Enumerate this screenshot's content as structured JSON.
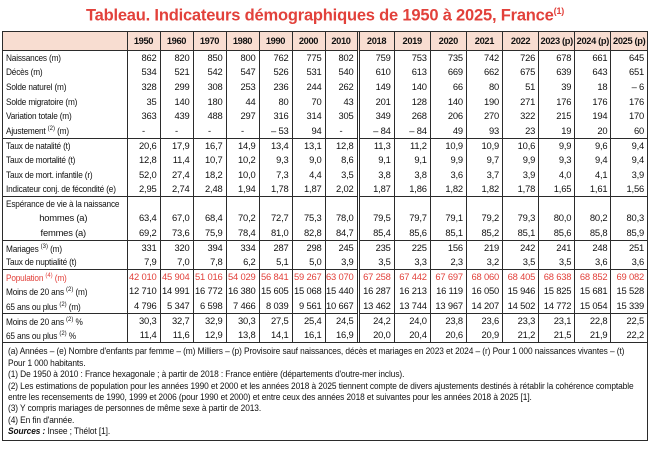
{
  "title": {
    "text": "Tableau. Indicateurs démographiques de 1950 à 2025, France",
    "sup": "(1)"
  },
  "colors": {
    "accent_red": "#e2413b",
    "header_bg": "#f8ddd1",
    "border": "#2b2b2b"
  },
  "table": {
    "year_columns": [
      "1950",
      "1960",
      "1970",
      "1980",
      "1990",
      "2000",
      "2010",
      "2018",
      "2019",
      "2020",
      "2021",
      "2022",
      "2023 (p)",
      "2024 (p)",
      "2025 (p)"
    ],
    "recent_start_index": 7,
    "rows": [
      {
        "label": "Naissances (m)",
        "sup": "",
        "label2": "",
        "values": [
          "862",
          "820",
          "850",
          "800",
          "762",
          "775",
          "802",
          "759",
          "753",
          "735",
          "742",
          "726",
          "678",
          "661",
          "645"
        ]
      },
      {
        "label": "Décès (m)",
        "sup": "",
        "label2": "",
        "values": [
          "534",
          "521",
          "542",
          "547",
          "526",
          "531",
          "540",
          "610",
          "613",
          "669",
          "662",
          "675",
          "639",
          "643",
          "651"
        ]
      },
      {
        "label": "Solde naturel (m)",
        "sup": "",
        "label2": "",
        "values": [
          "328",
          "299",
          "308",
          "253",
          "236",
          "244",
          "262",
          "149",
          "140",
          "66",
          "80",
          "51",
          "39",
          "18",
          "– 6"
        ]
      },
      {
        "label": "Solde migratoire (m)",
        "sup": "",
        "label2": "",
        "values": [
          "35",
          "140",
          "180",
          "44",
          "80",
          "70",
          "43",
          "201",
          "128",
          "140",
          "190",
          "271",
          "176",
          "176",
          "176"
        ]
      },
      {
        "label": "Variation totale (m)",
        "sup": "",
        "label2": "",
        "values": [
          "363",
          "439",
          "488",
          "297",
          "316",
          "314",
          "305",
          "349",
          "268",
          "206",
          "270",
          "322",
          "215",
          "194",
          "170"
        ]
      },
      {
        "label": "Ajustement ",
        "sup": "(2)",
        "label2": " (m)",
        "values": [
          "-",
          "-",
          "-",
          "-",
          "– 53",
          "94",
          "-",
          "– 84",
          "– 84",
          "49",
          "93",
          "23",
          "19",
          "20",
          "60"
        ]
      },
      {
        "label": "Taux de natalité (t)",
        "sup": "",
        "label2": "",
        "sep": true,
        "values": [
          "20,6",
          "17,9",
          "16,7",
          "14,9",
          "13,4",
          "13,1",
          "12,8",
          "11,3",
          "11,2",
          "10,9",
          "10,9",
          "10,6",
          "9,9",
          "9,6",
          "9,4"
        ]
      },
      {
        "label": "Taux de mortalité (t)",
        "sup": "",
        "label2": "",
        "values": [
          "12,8",
          "11,4",
          "10,7",
          "10,2",
          "9,3",
          "9,0",
          "8,6",
          "9,1",
          "9,1",
          "9,9",
          "9,7",
          "9,9",
          "9,3",
          "9,4",
          "9,4"
        ]
      },
      {
        "label": "Taux de mort. infantile (r)",
        "sup": "",
        "label2": "",
        "values": [
          "52,0",
          "27,4",
          "18,2",
          "10,0",
          "7,3",
          "4,4",
          "3,5",
          "3,8",
          "3,8",
          "3,6",
          "3,7",
          "3,9",
          "4,0",
          "4,1",
          "3,9"
        ]
      },
      {
        "label": "Indicateur conj. de fécondité (e)",
        "sup": "",
        "label2": "",
        "values": [
          "2,95",
          "2,74",
          "2,48",
          "1,94",
          "1,78",
          "1,87",
          "2,02",
          "1,87",
          "1,86",
          "1,82",
          "1,82",
          "1,78",
          "1,65",
          "1,61",
          "1,56"
        ]
      },
      {
        "label": "Espérance de vie à la naissance",
        "sup": "",
        "label2": "",
        "sep": true,
        "values": [
          "",
          "",
          "",
          "",
          "",
          "",
          "",
          "",
          "",
          "",
          "",
          "",
          "",
          "",
          ""
        ]
      },
      {
        "label": "hommes (a)",
        "sup": "",
        "label2": "",
        "align": "center",
        "values": [
          "63,4",
          "67,0",
          "68,4",
          "70,2",
          "72,7",
          "75,3",
          "78,0",
          "79,5",
          "79,7",
          "79,1",
          "79,2",
          "79,3",
          "80,0",
          "80,2",
          "80,3"
        ]
      },
      {
        "label": "femmes (a)",
        "sup": "",
        "label2": "",
        "align": "center",
        "values": [
          "69,2",
          "73,6",
          "75,9",
          "78,4",
          "81,0",
          "82,8",
          "84,7",
          "85,4",
          "85,6",
          "85,1",
          "85,2",
          "85,1",
          "85,6",
          "85,8",
          "85,9"
        ]
      },
      {
        "label": "Mariages ",
        "sup": "(3)",
        "label2": " (m)",
        "sep": true,
        "values": [
          "331",
          "320",
          "394",
          "334",
          "287",
          "298",
          "245",
          "235",
          "225",
          "156",
          "219",
          "242",
          "241",
          "248",
          "251"
        ]
      },
      {
        "label": "Taux de nuptialité (t)",
        "sup": "",
        "label2": "",
        "values": [
          "7,9",
          "7,0",
          "7,8",
          "6,2",
          "5,1",
          "5,0",
          "3,9",
          "3,5",
          "3,3",
          "2,3",
          "3,2",
          "3,5",
          "3,5",
          "3,6",
          "3,6"
        ]
      },
      {
        "label": "Population ",
        "sup": "(4)",
        "label2": " (m)",
        "sep": true,
        "red": true,
        "values": [
          "42 010",
          "45 904",
          "51 016",
          "54 029",
          "56 841",
          "59 267",
          "63 070",
          "67 258",
          "67 442",
          "67 697",
          "68 060",
          "68 405",
          "68 638",
          "68 852",
          "69 082"
        ]
      },
      {
        "label": "Moins de 20 ans ",
        "sup": "(2)",
        "label2": " (m)",
        "values": [
          "12 710",
          "14 991",
          "16 772",
          "16 380",
          "15 605",
          "15 068",
          "15 440",
          "16 287",
          "16 213",
          "16 119",
          "16 050",
          "15 946",
          "15 825",
          "15 681",
          "15 528"
        ]
      },
      {
        "label": "65 ans ou plus ",
        "sup": "(2)",
        "label2": " (m)",
        "values": [
          "4 796",
          "5 347",
          "6 598",
          "7 466",
          "8 039",
          "9 561",
          "10 667",
          "13 462",
          "13 744",
          "13 967",
          "14 207",
          "14 502",
          "14 772",
          "15 054",
          "15 339"
        ]
      },
      {
        "label": "Moins de 20 ans ",
        "sup": "(2)",
        "label2": " %",
        "sep": true,
        "values": [
          "30,3",
          "32,7",
          "32,9",
          "30,3",
          "27,5",
          "25,4",
          "24,5",
          "24,2",
          "24,0",
          "23,8",
          "23,6",
          "23,3",
          "23,1",
          "22,8",
          "22,5"
        ]
      },
      {
        "label": "65 ans ou plus ",
        "sup": "(2)",
        "label2": " %",
        "values": [
          "11,4",
          "11,6",
          "12,9",
          "13,8",
          "14,1",
          "16,1",
          "16,9",
          "20,0",
          "20,4",
          "20,6",
          "20,9",
          "21,2",
          "21,5",
          "21,9",
          "22,2"
        ]
      }
    ]
  },
  "footnotes": [
    "(a) Années – (e) Nombre d'enfants par femme – (m) Milliers – (p) Provisoire sauf naissances, décès et mariages en 2023 et 2024 – (r) Pour 1 000 naissances vivantes – (t) Pour 1 000 habitants.",
    "(1) De 1950 à 2010 : France hexagonale ; à partir de 2018 : France entière (départements d'outre-mer inclus).",
    "(2) Les estimations de population pour les années 1990 et 2000 et les années 2018 à 2025 tiennent compte de divers ajustements destinés à rétablir la cohérence comptable entre les recensements de 1990, 1999 et 2006 (pour 1990 et 2000) et entre ceux des années 2018 et suivantes pour les années 2018 à 2025 [1].",
    "(3) Y compris mariages de personnes de même sexe à partir de 2013.",
    "(4) En fin d'année."
  ],
  "sources": {
    "label": "Sources :",
    "text": " Insee ; Thélot [1]."
  }
}
